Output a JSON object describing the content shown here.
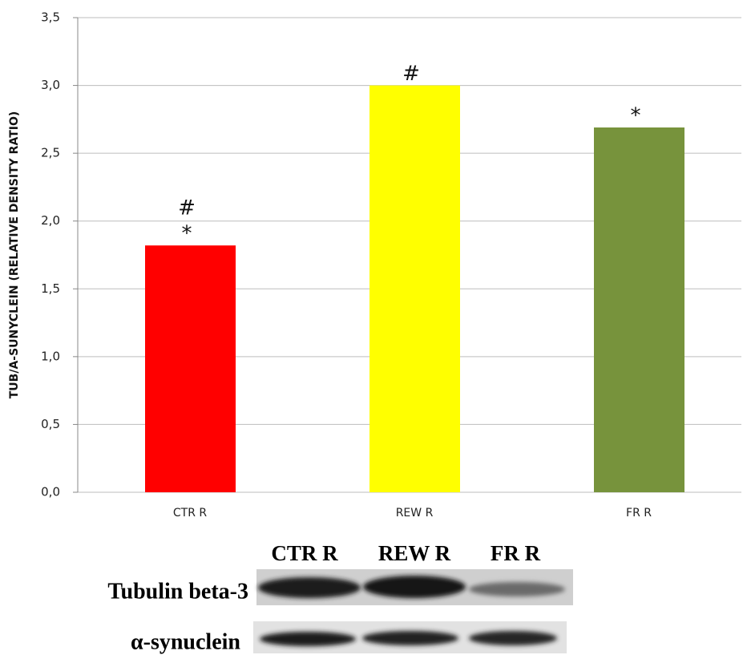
{
  "chart_data": {
    "type": "bar",
    "y_label": "TUB/A-SUNYCLEIN (RELATIVE DENSITY RATIO)",
    "categories": [
      "CTR R",
      "REW R",
      "FR R"
    ],
    "values": [
      1.82,
      3.0,
      2.69
    ],
    "colors": [
      "#ff0000",
      "#ffff00",
      "#77933c"
    ],
    "significance": [
      [
        "#",
        "*"
      ],
      [
        "#"
      ],
      [
        "*"
      ]
    ],
    "ylim": [
      0,
      3.5
    ],
    "yticks": [
      {
        "value": 0,
        "label": "0,0"
      },
      {
        "value": 0.5,
        "label": "0,5"
      },
      {
        "value": 1,
        "label": "1,0"
      },
      {
        "value": 1.5,
        "label": "1,5"
      },
      {
        "value": 2,
        "label": "2,0"
      },
      {
        "value": 2.5,
        "label": "2,5"
      },
      {
        "value": 3,
        "label": "3,0"
      },
      {
        "value": 3.5,
        "label": "3,5"
      }
    ],
    "grid": true
  },
  "blot": {
    "lanes": [
      "CTR R",
      "REW R",
      "FR R"
    ],
    "rows": [
      "Tubulin beta-3",
      "α-synuclein"
    ]
  }
}
